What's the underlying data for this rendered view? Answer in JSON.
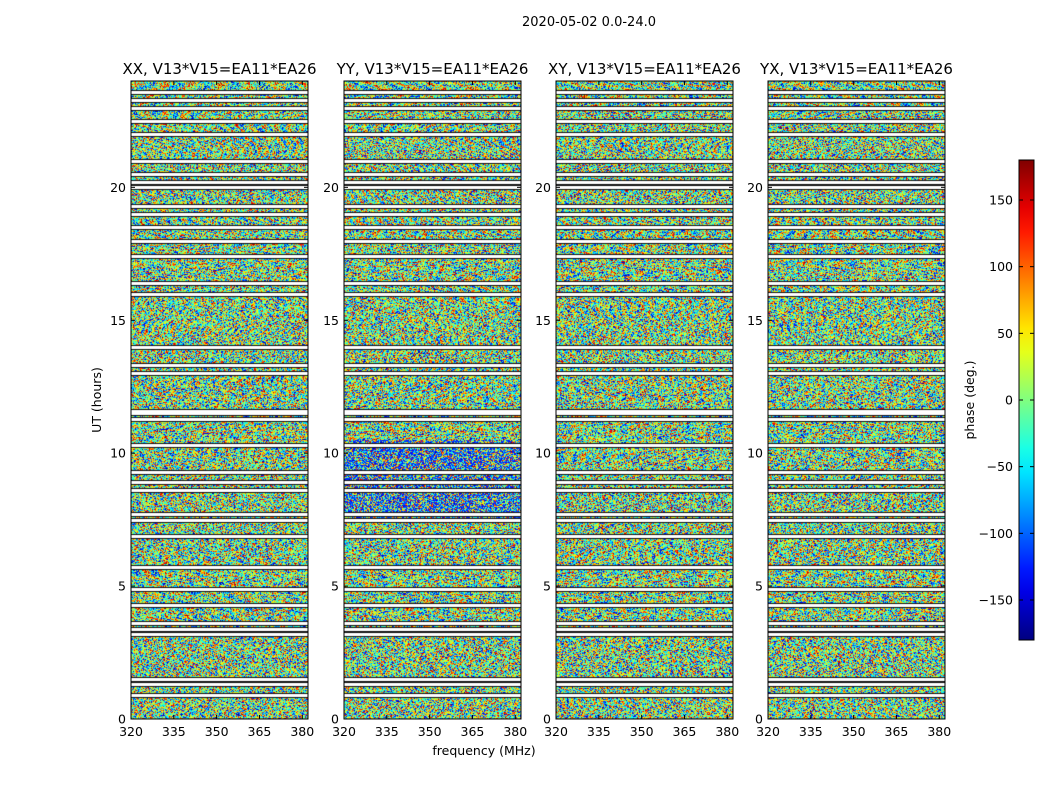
{
  "chart_data": {
    "type": "heatmap",
    "suptitle": "2020-05-02 0.0-24.0",
    "xlabel": "frequency (MHz)",
    "ylabel": "UT (hours)",
    "xlim": [
      320,
      382
    ],
    "ylim": [
      0,
      24
    ],
    "xticks": [
      320,
      335,
      350,
      365,
      380
    ],
    "yticks": [
      0,
      5,
      10,
      15,
      20
    ],
    "colormap": "jet",
    "colorbar": {
      "label": "phase (deg.)",
      "range": [
        -180,
        180
      ],
      "ticks": [
        150,
        100,
        50,
        0,
        -50,
        -100,
        -150
      ],
      "tick_labels": [
        "150",
        "100",
        "50",
        "0",
        "−50",
        "−100",
        "−150"
      ]
    },
    "flagged_ut_hours": [
      0.9,
      1.3,
      1.5,
      3.2,
      3.4,
      3.6,
      4.3,
      4.9,
      5.7,
      6.9,
      7.5,
      7.7,
      8.6,
      8.9,
      9.3,
      10.3,
      11.3,
      11.5,
      11.6,
      13.0,
      13.3,
      14.0,
      16.0,
      16.4,
      17.4,
      18.0,
      18.5,
      19.0,
      19.3,
      20.0,
      20.2,
      20.5,
      21.0,
      22.0,
      22.5,
      23.0,
      23.3,
      23.6
    ],
    "panels": [
      {
        "title": "XX, V13*V15=EA11*EA26"
      },
      {
        "title": "YY, V13*V15=EA11*EA26"
      },
      {
        "title": "XY, V13*V15=EA11*EA26"
      },
      {
        "title": "YX, V13*V15=EA11*EA26"
      }
    ]
  }
}
